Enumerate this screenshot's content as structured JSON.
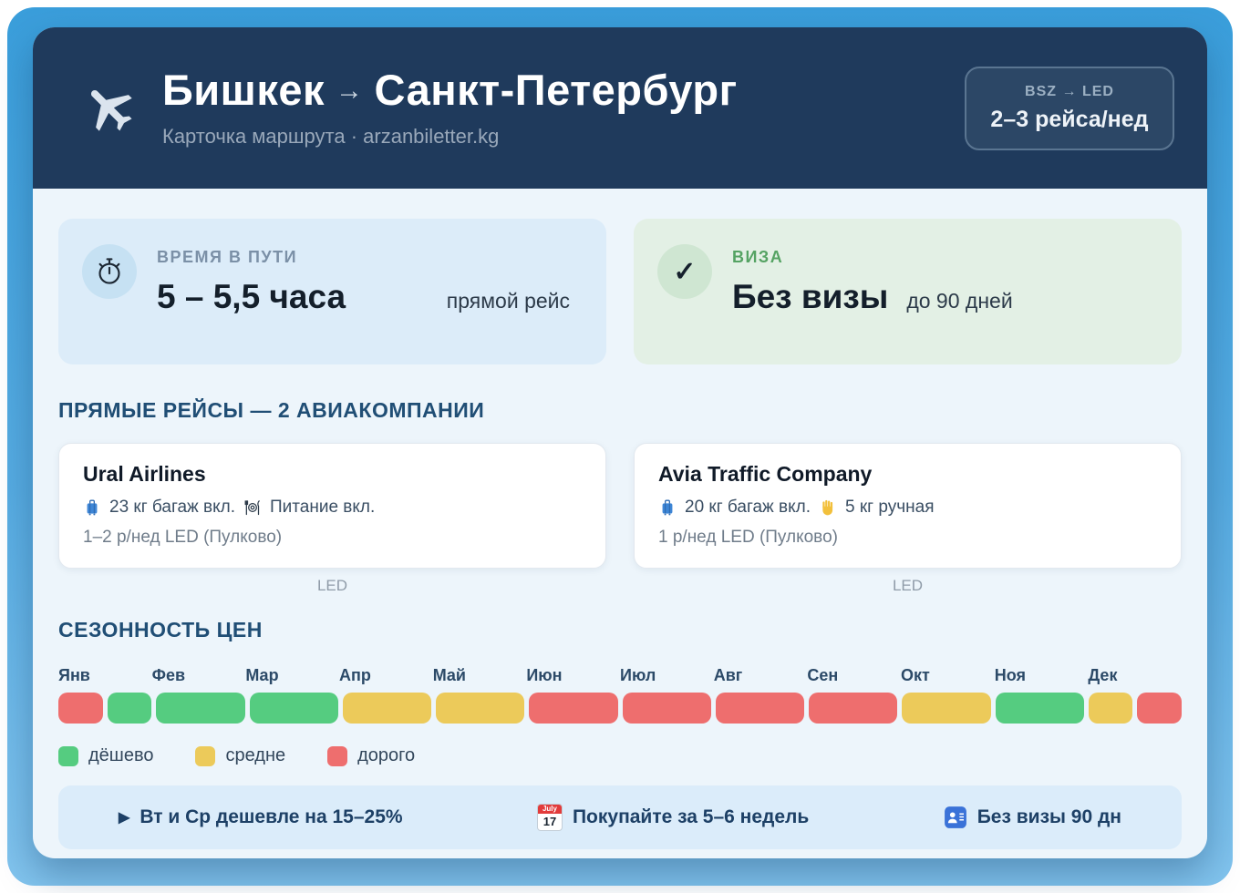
{
  "header": {
    "from_city": "Бишкек",
    "arrow": "→",
    "to_city": "Санкт-Петербург",
    "subtitle": "Карточка маршрута · arzanbiletter.kg",
    "badge": {
      "codes": "BSZ → LED",
      "frequency": "2–3 рейса/нед"
    }
  },
  "summary": {
    "duration": {
      "label": "ВРЕМЯ В ПУТИ",
      "value": "5 – 5,5 часа",
      "note": "прямой рейс",
      "icon": "stopwatch-icon"
    },
    "visa": {
      "label": "ВИЗА",
      "glyph": "✓",
      "value": "Без визы",
      "note": "до 90 дней",
      "icon": "checkmark-icon"
    }
  },
  "direct_flights": {
    "section_title": "ПРЯМЫЕ РЕЙСЫ — 2 АВИАКОМПАНИИ",
    "airlines": [
      {
        "name": "Ural Airlines",
        "baggage_icon": "luggage-icon",
        "baggage": "23 кг багаж вкл.",
        "extra_icon": "meal-icon",
        "extra": "Питание вкл.",
        "frequency": "1–2 р/нед LED (Пулково)",
        "caption": "LED"
      },
      {
        "name": "Avia Traffic Company",
        "baggage_icon": "luggage-icon",
        "baggage": "20 кг багаж вкл.",
        "extra_icon": "hand-icon",
        "extra": "5 кг ручная",
        "frequency": "1 р/нед LED (Пулково)",
        "caption": "LED"
      }
    ]
  },
  "seasonality": {
    "section_title": "СЕЗОННОСТЬ ЦЕН",
    "months": [
      "Янв",
      "Фев",
      "Мар",
      "Апр",
      "Май",
      "Июн",
      "Июл",
      "Авг",
      "Сен",
      "Окт",
      "Ноя",
      "Дек"
    ],
    "colors": {
      "cheap": "#55cc80",
      "medium": "#ecca5a",
      "expensive": "#ee6e6e"
    },
    "segments": [
      {
        "level": "expensive",
        "weight": 1
      },
      {
        "level": "cheap",
        "weight": 1
      },
      {
        "level": "cheap",
        "weight": 2
      },
      {
        "level": "cheap",
        "weight": 2
      },
      {
        "level": "medium",
        "weight": 2
      },
      {
        "level": "medium",
        "weight": 2
      },
      {
        "level": "expensive",
        "weight": 2
      },
      {
        "level": "expensive",
        "weight": 2
      },
      {
        "level": "expensive",
        "weight": 2
      },
      {
        "level": "expensive",
        "weight": 2
      },
      {
        "level": "medium",
        "weight": 2
      },
      {
        "level": "cheap",
        "weight": 2
      },
      {
        "level": "medium",
        "weight": 1
      },
      {
        "level": "expensive",
        "weight": 1
      }
    ],
    "legend": [
      {
        "label": "дёшево",
        "level": "cheap"
      },
      {
        "label": "средне",
        "level": "medium"
      },
      {
        "label": "дорого",
        "level": "expensive"
      }
    ]
  },
  "tips": [
    {
      "icon": "play-icon",
      "glyph": "▶",
      "text": "Вт и Ср дешевле на 15–25%"
    },
    {
      "icon": "calendar-icon",
      "calendar": {
        "month": "July",
        "day": "17"
      },
      "text": "Покупайте за 5–6 недель"
    },
    {
      "icon": "passport-icon",
      "text": "Без визы 90 дн"
    }
  ],
  "theme_colors": {
    "header_navy": "#1f3a5c",
    "outer_blue_top": "#3a9edb",
    "outer_blue_bottom": "#82c4ee",
    "body_bg": "#edf5fb",
    "time_card_bg": "#dcecf9",
    "visa_card_bg": "#e3f0e5",
    "section_title": "#204e75",
    "tips_bg": "#dbecfa"
  }
}
